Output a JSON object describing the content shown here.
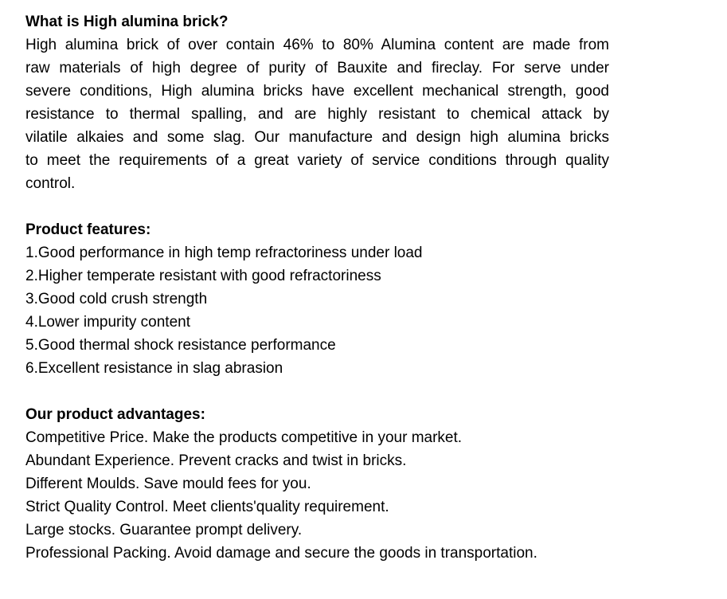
{
  "intro": {
    "heading": "What is High alumina brick?",
    "lines": [
      "High alumina brick of over contain 46% to 80% Alumina content are made from",
      "raw materials of high degree of purity of Bauxite and fireclay. For serve under",
      "severe conditions, High alumina bricks have excellent mechanical strength, good",
      "resistance to thermal spalling, and are highly resistant to chemical attack by",
      "vilatile alkaies and some slag. Our manufacture and design high alumina bricks",
      "to meet the requirements of a great variety of service conditions through quality",
      "control."
    ]
  },
  "features": {
    "heading": "Product features:",
    "items": [
      "1.Good performance in high temp refractoriness under load",
      "2.Higher temperate resistant with good refractoriness",
      "3.Good cold crush strength",
      "4.Lower impurity content",
      "5.Good thermal shock resistance performance",
      "6.Excellent resistance in slag abrasion"
    ]
  },
  "advantages": {
    "heading": "Our product advantages:",
    "items": [
      "Competitive Price. Make the products competitive in your market.",
      "Abundant Experience. Prevent cracks and twist in bricks.",
      "Different Moulds. Save mould fees for you.",
      "Strict Quality Control. Meet clients'quality requirement.",
      "Large stocks. Guarantee prompt delivery.",
      "Professional Packing. Avoid damage and secure the goods in transportation."
    ]
  },
  "colors": {
    "text": "#000000",
    "background": "#ffffff"
  }
}
